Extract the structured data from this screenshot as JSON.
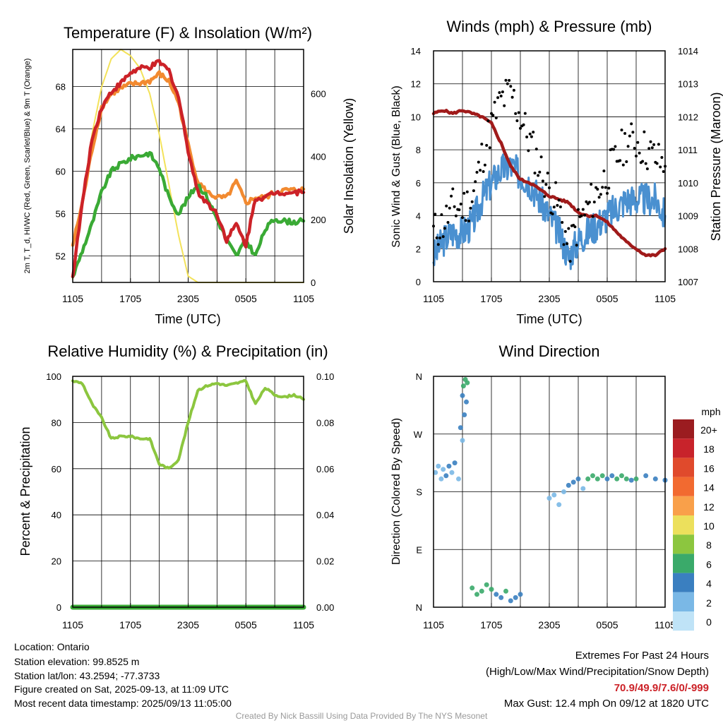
{
  "colors": {
    "temp": "#cc2228",
    "dew": "#3aaa35",
    "wc": "#3aaa35",
    "t9": "#f28a30",
    "solar": "#f3e25a",
    "gust": "#000000",
    "wind": "#4a90d0",
    "pressure": "#a01a1a",
    "rh": "#8cc63f",
    "precip": "#3aaa35",
    "extremes": "#cc2228",
    "credit": "#999999"
  },
  "time_ticks": [
    "1105",
    "1705",
    "2305",
    "0505",
    "1105"
  ],
  "panels": {
    "temperature": {
      "title": "Temperature (F) & Insolation (W/m²)",
      "xlabel": "Time (UTC)",
      "ylabel_left": "2m T, T_d, HI/WC (Red, Green, Scarlet/Blue) & 9m T (Orange)",
      "ylabel_right": "Solar Insolation (Yellow)",
      "yticks_left": [
        "52",
        "56",
        "60",
        "64",
        "68"
      ],
      "yticks_right": [
        "0",
        "200",
        "400",
        "600"
      ]
    },
    "winds": {
      "title": "Winds (mph) & Pressure (mb)",
      "xlabel": "Time (UTC)",
      "ylabel_left": "Sonic Wind & Gust (Blue, Black)",
      "ylabel_right": "Station Pressure (Maroon)",
      "yticks_left": [
        "0",
        "2",
        "4",
        "6",
        "8",
        "10",
        "12",
        "14"
      ],
      "yticks_right": [
        "1007",
        "1008",
        "1009",
        "1010",
        "1011",
        "1012",
        "1013",
        "1014"
      ]
    },
    "humidity": {
      "title": "Relative Humidity (%) & Precipitation (in)",
      "ylabel_left": "Percent & Precipitation",
      "yticks_left": [
        "0",
        "20",
        "40",
        "60",
        "80",
        "100"
      ],
      "yticks_right": [
        "0.00",
        "0.02",
        "0.04",
        "0.06",
        "0.08",
        "0.10"
      ]
    },
    "direction": {
      "title": "Wind Direction",
      "ylabel_left": "Direction (Colored By Speed)",
      "yticks_left": [
        "N",
        "E",
        "S",
        "W",
        "N"
      ],
      "legend_title": "mph",
      "legend_labels": [
        "20+",
        "18",
        "16",
        "14",
        "12",
        "10",
        "8",
        "6",
        "4",
        "2",
        "0"
      ],
      "legend_colors": [
        "#9b1c20",
        "#c8232b",
        "#e04a2c",
        "#f26a30",
        "#f9a04a",
        "#ece05c",
        "#8cc63f",
        "#3aaa6a",
        "#3a7fc0",
        "#7ab8e6",
        "#bfe3f7"
      ]
    }
  },
  "chart_data": [
    {
      "type": "line",
      "title": "Temperature (F) & Insolation (W/m²)",
      "xlabel": "Time (UTC)",
      "ylabel": "2m T, T_d, HI/WC (Red, Green, Scarlet/Blue) & 9m T (Orange)",
      "ylabel_right": "Solar Insolation (Yellow)",
      "x_hours_since_1105": [
        0,
        1,
        2,
        3,
        4,
        5,
        6,
        7,
        8,
        9,
        10,
        11,
        12,
        13,
        14,
        15,
        16,
        17,
        18,
        19,
        20,
        21,
        22,
        23,
        24
      ],
      "ylim": [
        49.5,
        71.5
      ],
      "ylim_right": [
        0,
        740
      ],
      "series": [
        {
          "name": "2m T",
          "values": [
            50.0,
            57.0,
            63.0,
            66.0,
            67.5,
            68.3,
            69.3,
            69.7,
            69.8,
            70.3,
            69.5,
            67.0,
            62.0,
            58.0,
            57.0,
            56.0,
            53.5,
            55.0,
            53.0,
            57.5,
            57.5,
            58.0,
            58.0,
            58.0,
            58.0
          ]
        },
        {
          "name": "2m Td",
          "values": [
            50.0,
            52.5,
            55.0,
            58.0,
            60.0,
            60.7,
            61.2,
            61.5,
            61.7,
            60.3,
            57.5,
            56.0,
            57.5,
            58.8,
            57.5,
            55.5,
            53.5,
            52.0,
            53.5,
            52.0,
            54.5,
            55.5,
            55.3,
            55.2,
            55.3
          ]
        },
        {
          "name": "9m T",
          "values": [
            53.0,
            57.0,
            62.0,
            66.0,
            67.3,
            67.8,
            68.2,
            68.3,
            68.5,
            69.2,
            68.5,
            66.5,
            62.5,
            59.0,
            58.0,
            57.5,
            57.5,
            59.0,
            57.0,
            57.5,
            57.5,
            58.0,
            58.2,
            58.2,
            58.3
          ]
        },
        {
          "name": "Solar",
          "axis": "right",
          "values": [
            10,
            260,
            470,
            620,
            710,
            740,
            720,
            680,
            600,
            470,
            310,
            150,
            20,
            0,
            0,
            0,
            0,
            0,
            0,
            0,
            0,
            0,
            0,
            0,
            0
          ]
        }
      ]
    },
    {
      "type": "line",
      "title": "Winds (mph) & Pressure (mb)",
      "xlabel": "Time (UTC)",
      "ylabel": "Sonic Wind & Gust (Blue, Black)",
      "ylabel_right": "Station Pressure (Maroon)",
      "x_hours_since_1105": [
        0,
        1,
        2,
        3,
        4,
        5,
        6,
        7,
        8,
        9,
        10,
        11,
        12,
        13,
        14,
        15,
        16,
        17,
        18,
        19,
        20,
        21,
        22,
        23,
        24
      ],
      "ylim": [
        0,
        14
      ],
      "ylim_right": [
        1007,
        1014
      ],
      "series": [
        {
          "name": "Sonic Wind",
          "values": [
            1.5,
            2.5,
            3.0,
            3.0,
            3.5,
            5.0,
            6.0,
            6.8,
            7.0,
            6.5,
            6.0,
            5.0,
            4.0,
            3.0,
            1.5,
            2.5,
            3.0,
            3.5,
            4.0,
            4.5,
            5.0,
            5.0,
            5.0,
            5.0,
            4.0
          ]
        },
        {
          "name": "Gust",
          "values": [
            3.0,
            3.5,
            4.5,
            4.5,
            5.0,
            7.5,
            9.5,
            11.0,
            11.5,
            10.0,
            8.5,
            7.0,
            5.5,
            4.5,
            2.0,
            3.5,
            4.5,
            5.5,
            6.5,
            7.5,
            8.5,
            8.5,
            8.0,
            7.5,
            7.0
          ]
        },
        {
          "name": "Station Pressure",
          "axis": "right",
          "values": [
            1012.1,
            1012.2,
            1012.1,
            1012.2,
            1012.1,
            1012.0,
            1011.8,
            1011.2,
            1010.5,
            1010.1,
            1010.0,
            1009.8,
            1009.6,
            1009.5,
            1009.4,
            1009.1,
            1009.0,
            1009.0,
            1008.8,
            1008.5,
            1008.2,
            1008.0,
            1007.8,
            1007.8,
            1008.0
          ]
        }
      ]
    },
    {
      "type": "line",
      "title": "Relative Humidity (%) & Precipitation (in)",
      "ylabel": "Percent & Precipitation",
      "x_hours_since_1105": [
        0,
        1,
        2,
        3,
        4,
        5,
        6,
        7,
        8,
        9,
        10,
        11,
        12,
        13,
        14,
        15,
        16,
        17,
        18,
        19,
        20,
        21,
        22,
        23,
        24
      ],
      "ylim": [
        0,
        100
      ],
      "ylim_right": [
        0,
        0.1
      ],
      "series": [
        {
          "name": "RH",
          "values": [
            98,
            97,
            88,
            82,
            73,
            74,
            74,
            73,
            73,
            62,
            60,
            64,
            80,
            94,
            96,
            97,
            96,
            97,
            98,
            88,
            95,
            92,
            91,
            92,
            90
          ]
        },
        {
          "name": "Precipitation",
          "axis": "right",
          "values": [
            0,
            0,
            0,
            0,
            0,
            0,
            0,
            0,
            0,
            0,
            0,
            0,
            0,
            0,
            0,
            0,
            0,
            0,
            0,
            0,
            0,
            0,
            0,
            0,
            0
          ]
        }
      ]
    },
    {
      "type": "scatter",
      "title": "Wind Direction",
      "ylabel": "Direction (Colored By Speed)",
      "y_categories": [
        "N",
        "E",
        "S",
        "W",
        "N"
      ],
      "ylim_degrees": [
        0,
        360
      ],
      "points_hours_deg_mph": [
        [
          0.2,
          210,
          1
        ],
        [
          0.5,
          220,
          1
        ],
        [
          0.8,
          200,
          2
        ],
        [
          1.0,
          215,
          2
        ],
        [
          1.3,
          205,
          3
        ],
        [
          1.6,
          220,
          3
        ],
        [
          1.9,
          210,
          2
        ],
        [
          2.2,
          225,
          3
        ],
        [
          2.6,
          200,
          2
        ],
        [
          3.0,
          330,
          4
        ],
        [
          3.1,
          345,
          6
        ],
        [
          3.3,
          355,
          5
        ],
        [
          3.2,
          300,
          3
        ],
        [
          3.4,
          320,
          4
        ],
        [
          3.0,
          260,
          2
        ],
        [
          3.5,
          350,
          6
        ],
        [
          2.8,
          280,
          3
        ],
        [
          4.0,
          30,
          6
        ],
        [
          4.5,
          20,
          5
        ],
        [
          5.0,
          25,
          6
        ],
        [
          5.5,
          35,
          6
        ],
        [
          6.0,
          28,
          5
        ],
        [
          6.5,
          20,
          4
        ],
        [
          7.0,
          15,
          4
        ],
        [
          7.5,
          25,
          5
        ],
        [
          8.0,
          10,
          4
        ],
        [
          8.5,
          15,
          4
        ],
        [
          9.0,
          20,
          3
        ],
        [
          12.0,
          170,
          1
        ],
        [
          12.5,
          175,
          1
        ],
        [
          13.0,
          160,
          1
        ],
        [
          13.5,
          180,
          2
        ],
        [
          14.0,
          190,
          3
        ],
        [
          14.5,
          195,
          3
        ],
        [
          15.0,
          200,
          4
        ],
        [
          15.5,
          185,
          2
        ],
        [
          16.0,
          200,
          6
        ],
        [
          16.5,
          205,
          5
        ],
        [
          17.0,
          200,
          6
        ],
        [
          17.5,
          205,
          5
        ],
        [
          18.0,
          200,
          4
        ],
        [
          18.5,
          205,
          4
        ],
        [
          19.0,
          200,
          6
        ],
        [
          19.5,
          205,
          5
        ],
        [
          20.0,
          200,
          6
        ],
        [
          20.5,
          198,
          4
        ],
        [
          21.0,
          200,
          6
        ],
        [
          22.0,
          205,
          4
        ],
        [
          23.0,
          200,
          4
        ],
        [
          24.0,
          198,
          3
        ]
      ]
    }
  ],
  "info": {
    "location": "Location: Ontario",
    "elevation": "Station elevation: 99.8525 m",
    "latlon": "Station lat/lon: 43.2594; -77.3733",
    "created": "Figure created on Sat, 2025-09-13, at 11:09 UTC",
    "recent": "Most recent data timestamp: 2025/09/13 11:05:00"
  },
  "extremes": {
    "title": "Extremes For Past 24 Hours",
    "subtitle": "(High/Low/Max Wind/Precipitation/Snow Depth)",
    "values": "70.9/49.9/7.6/0/-999",
    "gust": "Max Gust: 12.4 mph On 09/12 at 1820 UTC"
  },
  "credit": "Created By Nick Bassill Using Data Provided By The NYS Mesonet"
}
